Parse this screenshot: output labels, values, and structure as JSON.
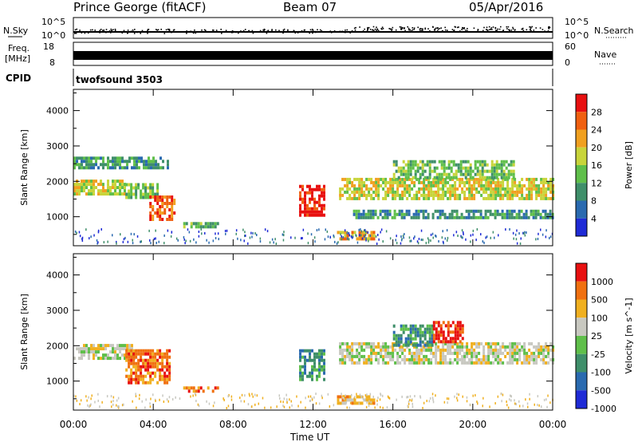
{
  "header": {
    "station": "Prince George (fitACF)",
    "beam": "Beam 07",
    "date": "05/Apr/2016"
  },
  "strips": {
    "nsky_label": "N.Sky",
    "nsky_ticks": [
      "10^5",
      "10^0"
    ],
    "nsearch_label": "N.Search",
    "nsearch_ticks": [
      "10^5",
      "10^0"
    ],
    "freq_label_1": "Freq.",
    "freq_label_2": "[MHz]",
    "freq_ticks": [
      "18",
      "8"
    ],
    "nave_label": "Nave",
    "nave_ticks": [
      "60",
      "0"
    ],
    "cpid_label": "CPID",
    "cpid_value": "twofsound 3503"
  },
  "chart_data": [
    {
      "type": "heatmap",
      "name": "power",
      "ylabel": "Slant Range [km]",
      "yticks": [
        1000,
        2000,
        3000,
        4000
      ],
      "ylim": [
        180,
        4600
      ],
      "xlim": [
        0,
        24
      ],
      "colorbar_label": "Power [dB]",
      "colorbar_ticks": [
        "28",
        "24",
        "20",
        "16",
        "12",
        "8",
        "4"
      ],
      "colors": [
        "#1f2bd6",
        "#2a6ab0",
        "#3f8f6a",
        "#5fbf4a",
        "#c8d43a",
        "#f0a020",
        "#f06010",
        "#e81010"
      ],
      "echo_regions": [
        {
          "t0": 0.0,
          "t1": 2.6,
          "r0": 1650,
          "r1": 2050,
          "level": 4
        },
        {
          "t0": 2.6,
          "t1": 4.2,
          "r0": 1500,
          "r1": 1950,
          "level": 3
        },
        {
          "t0": 3.8,
          "t1": 5.0,
          "r0": 950,
          "r1": 1600,
          "level": 6
        },
        {
          "t0": 0.0,
          "t1": 4.8,
          "r0": 2400,
          "r1": 2700,
          "level": 2
        },
        {
          "t0": 5.5,
          "t1": 7.2,
          "r0": 700,
          "r1": 850,
          "level": 3
        },
        {
          "t0": 11.3,
          "t1": 12.6,
          "r0": 1000,
          "r1": 1900,
          "level": 7
        },
        {
          "t0": 13.2,
          "t1": 15.0,
          "r0": 400,
          "r1": 600,
          "level": 5
        },
        {
          "t0": 13.3,
          "t1": 24.0,
          "r0": 1500,
          "r1": 2100,
          "level": 4
        },
        {
          "t0": 14.0,
          "t1": 24.0,
          "r0": 1000,
          "r1": 1200,
          "level": 2
        },
        {
          "t0": 16.0,
          "t1": 22.0,
          "r0": 2100,
          "r1": 2600,
          "level": 3
        }
      ]
    },
    {
      "type": "heatmap",
      "name": "velocity",
      "ylabel": "Slant Range [km]",
      "xlabel": "Time UT",
      "xticks": [
        "00:00",
        "04:00",
        "08:00",
        "12:00",
        "16:00",
        "20:00",
        "00:00"
      ],
      "yticks": [
        1000,
        2000,
        3000,
        4000
      ],
      "ylim": [
        180,
        4600
      ],
      "xlim": [
        0,
        24
      ],
      "colorbar_label": "Velocity [m s^-1]",
      "colorbar_ticks": [
        "1000",
        "500",
        "100",
        "25",
        "-25",
        "-100",
        "-500",
        "-1000"
      ],
      "colors": [
        "#1f2bd6",
        "#2a6ab0",
        "#3f8f6a",
        "#5fbf4a",
        "#c8c8c0",
        "#f0b020",
        "#f07010",
        "#e81010"
      ],
      "echo_regions": [
        {
          "t0": 0.0,
          "t1": 3.0,
          "r0": 1650,
          "r1": 2050,
          "level": 4
        },
        {
          "t0": 2.6,
          "t1": 4.8,
          "r0": 950,
          "r1": 1900,
          "level": 6
        },
        {
          "t0": 5.5,
          "t1": 7.2,
          "r0": 700,
          "r1": 850,
          "level": 6
        },
        {
          "t0": 11.3,
          "t1": 12.6,
          "r0": 1000,
          "r1": 1900,
          "level": 2
        },
        {
          "t0": 13.2,
          "t1": 15.0,
          "r0": 400,
          "r1": 600,
          "level": 5
        },
        {
          "t0": 13.3,
          "t1": 24.0,
          "r0": 1500,
          "r1": 2100,
          "level": 4
        },
        {
          "t0": 16.0,
          "t1": 18.0,
          "r0": 2000,
          "r1": 2600,
          "level": 2
        },
        {
          "t0": 18.0,
          "t1": 19.5,
          "r0": 2100,
          "r1": 2700,
          "level": 7
        }
      ]
    }
  ]
}
